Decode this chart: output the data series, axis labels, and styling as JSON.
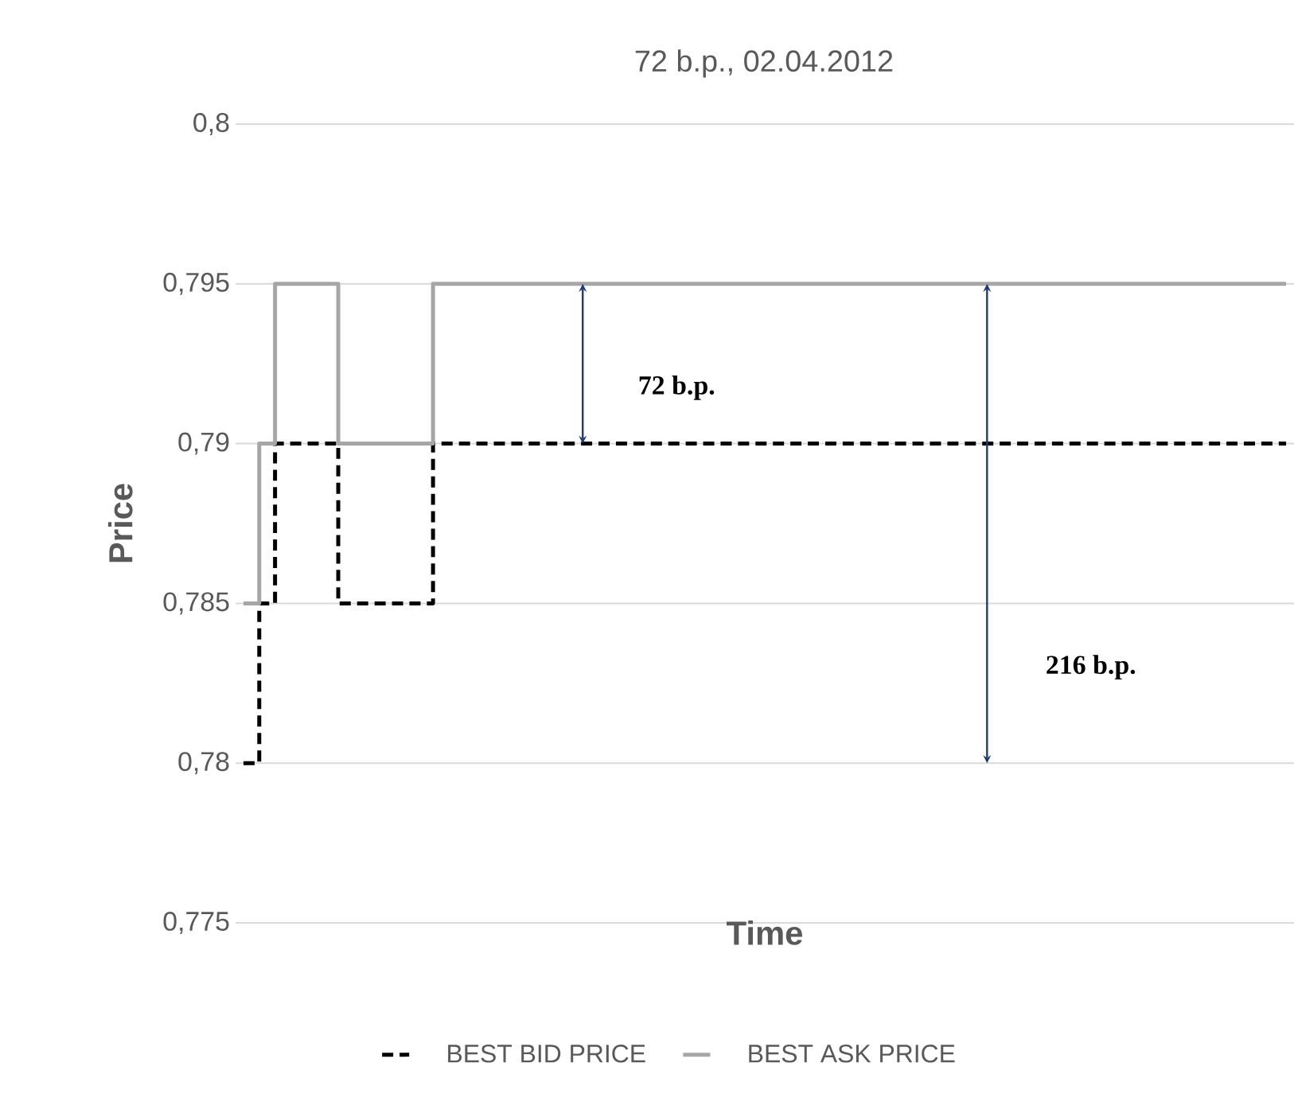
{
  "chart_data": {
    "type": "step",
    "title": "72 b.p., 02.04.2012",
    "xlabel": "Time",
    "ylabel": "Price",
    "categories": [
      null,
      null,
      null,
      null,
      null,
      null,
      null,
      null,
      null,
      null,
      null,
      null,
      null,
      null,
      null,
      null,
      null,
      null,
      null,
      null,
      null,
      null,
      null,
      null,
      null,
      null,
      null,
      null,
      null,
      null,
      null,
      null,
      null,
      null,
      null,
      null,
      null,
      null,
      null,
      null,
      null,
      null,
      null,
      null,
      null,
      null,
      null,
      null,
      null,
      null,
      null,
      null,
      null,
      null,
      null,
      null,
      null,
      null,
      null,
      null,
      null,
      null,
      null,
      null,
      null,
      null,
      null
    ],
    "series": [
      {
        "name": "BEST BID PRICE",
        "color": "#000000",
        "line_style": "dashed",
        "values": [
          0.78,
          0.785,
          0.79,
          0.79,
          0.79,
          0.79,
          0.785,
          0.785,
          0.785,
          0.785,
          0.785,
          0.785,
          0.79,
          0.79,
          0.79,
          0.79,
          0.79,
          0.79,
          0.79,
          0.79,
          0.79,
          0.79,
          0.79,
          0.79,
          0.79,
          0.79,
          0.79,
          0.79,
          0.79,
          0.79,
          0.79,
          0.79,
          0.79,
          0.79,
          0.79,
          0.79,
          0.79,
          0.79,
          0.79,
          0.79,
          0.79,
          0.79,
          0.79,
          0.79,
          0.79,
          0.79,
          0.79,
          0.79,
          0.79,
          0.79,
          0.79,
          0.79,
          0.79,
          0.79,
          0.79,
          0.79,
          0.79,
          0.79,
          0.79,
          0.79,
          0.79,
          0.79,
          0.79,
          0.79,
          0.79,
          0.79,
          0.79
        ]
      },
      {
        "name": "BEST ASK PRICE",
        "color": "#a6a6a6",
        "line_style": "solid",
        "values": [
          0.785,
          0.79,
          0.795,
          0.795,
          0.795,
          0.795,
          0.79,
          0.79,
          0.79,
          0.79,
          0.79,
          0.79,
          0.795,
          0.795,
          0.795,
          0.795,
          0.795,
          0.795,
          0.795,
          0.795,
          0.795,
          0.795,
          0.795,
          0.795,
          0.795,
          0.795,
          0.795,
          0.795,
          0.795,
          0.795,
          0.795,
          0.795,
          0.795,
          0.795,
          0.795,
          0.795,
          0.795,
          0.795,
          0.795,
          0.795,
          0.795,
          0.795,
          0.795,
          0.795,
          0.795,
          0.795,
          0.795,
          0.795,
          0.795,
          0.795,
          0.795,
          0.795,
          0.795,
          0.795,
          0.795,
          0.795,
          0.795,
          0.795,
          0.795,
          0.795,
          0.795,
          0.795,
          0.795,
          0.795,
          0.795,
          0.795,
          0.795
        ]
      }
    ],
    "ylim": [
      0.775,
      0.8
    ],
    "yticks": [
      {
        "value": 0.775,
        "label": "0,775"
      },
      {
        "value": 0.78,
        "label": "0,78"
      },
      {
        "value": 0.785,
        "label": "0,785"
      },
      {
        "value": 0.79,
        "label": "0,79"
      },
      {
        "value": 0.795,
        "label": "0,795"
      },
      {
        "value": 0.8,
        "label": "0,8"
      }
    ],
    "grid": "y",
    "legend": "bottom",
    "tick_labels": "y",
    "annotations": [
      "72 b.p.",
      "216 b.p."
    ]
  }
}
